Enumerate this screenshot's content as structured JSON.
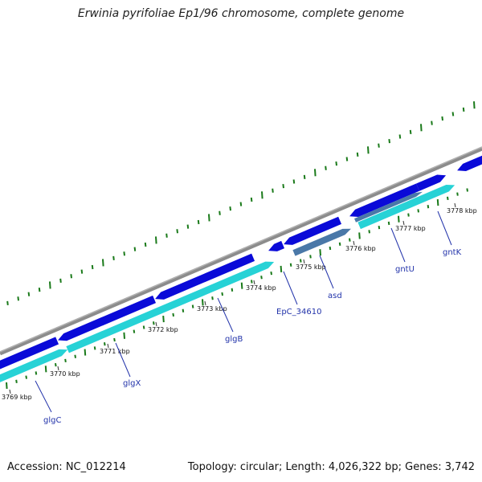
{
  "title": "Erwinia pyrifoliae Ep1/96 chromosome, complete genome",
  "accession": "Accession: NC_012214",
  "stats": "Topology: circular; Length: 4,026,322 bp; Genes: 3,742",
  "colors": {
    "backbone": "#8c8c8c",
    "forward_gene": "#0a0ad8",
    "reverse_gene": "#27d2d6",
    "reverse_gene_dark": "#4a78a8",
    "gc_tick": "#1a7a1a",
    "label": "#2233aa"
  },
  "scale_labels": [
    "3769 kbp",
    "3770 kbp",
    "3771 kbp",
    "3772 kbp",
    "3773 kbp",
    "3774 kbp",
    "3775 kbp",
    "3776 kbp",
    "3777 kbp",
    "3778 kbp"
  ],
  "gene_labels": [
    "glgC",
    "glgX",
    "glgB",
    "EpC_34610",
    "asd",
    "gntU",
    "gntK"
  ]
}
